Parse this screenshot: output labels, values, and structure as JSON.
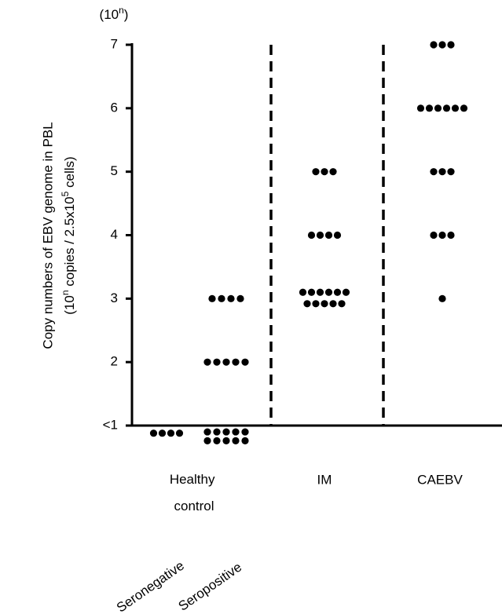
{
  "chart_data": {
    "type": "dot",
    "y_unit_label": [
      "(10",
      "n",
      ")"
    ],
    "y_label": "Copy numbers of EBV genome in PBL",
    "y_label_2": [
      "(10",
      "n",
      " copies / 2.5x10",
      "5",
      " cells)"
    ],
    "ylim": [
      1,
      7
    ],
    "yticks": [
      {
        "value": 1,
        "label": "<1"
      },
      2,
      3,
      4,
      5,
      6,
      7
    ],
    "color": "#000000",
    "categories": [
      {
        "label": "Healthy control",
        "series": [
          {
            "name": "Seronegative",
            "values": [
              0.88,
              0.88,
              0.88,
              0.88
            ]
          },
          {
            "name": "Seropositive",
            "values": [
              3,
              3,
              3,
              3,
              2,
              2,
              2,
              2,
              2,
              0.9,
              0.9,
              0.9,
              0.9,
              0.9,
              0.76,
              0.76,
              0.76,
              0.76,
              0.76
            ]
          }
        ]
      },
      {
        "label": "IM",
        "values": [
          5,
          5,
          5,
          4,
          4,
          4,
          4,
          3.1,
          3.1,
          3.1,
          3.1,
          3.1,
          3.1,
          2.92,
          2.92,
          2.92,
          2.92,
          2.92
        ]
      },
      {
        "label": "CAEBV",
        "values": [
          7,
          7,
          7,
          6,
          6,
          6,
          6,
          6,
          6,
          5,
          5,
          5,
          4,
          4,
          4,
          3
        ]
      }
    ]
  }
}
